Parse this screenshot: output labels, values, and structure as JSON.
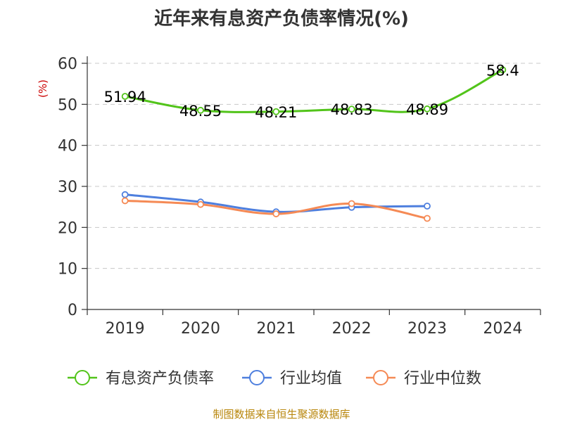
{
  "chart_data": {
    "type": "line",
    "title": "近年来有息资产负债率情况(%)",
    "xlabel": "",
    "ylabel": "(%)",
    "categories": [
      "2019",
      "2020",
      "2021",
      "2022",
      "2023",
      "2024"
    ],
    "ylim": [
      0,
      60
    ],
    "yticks": [
      0,
      10,
      20,
      30,
      40,
      50,
      60
    ],
    "grid": true,
    "legend_position": "bottom",
    "series": [
      {
        "name": "有息资产负债率",
        "color": "#52c41a",
        "values": [
          51.94,
          48.55,
          48.21,
          48.83,
          48.89,
          58.4
        ],
        "labels": [
          "51.94",
          "48.55",
          "48.21",
          "48.83",
          "48.89",
          "58.4"
        ],
        "show_labels": true
      },
      {
        "name": "行业均值",
        "color": "#4e7fde",
        "values": [
          28.0,
          26.2,
          23.8,
          24.9,
          25.2,
          null
        ],
        "show_labels": false
      },
      {
        "name": "行业中位数",
        "color": "#f58a55",
        "values": [
          26.5,
          25.6,
          23.3,
          25.8,
          22.2,
          null
        ],
        "show_labels": false
      }
    ],
    "source": "制图数据来自恒生聚源数据库"
  }
}
